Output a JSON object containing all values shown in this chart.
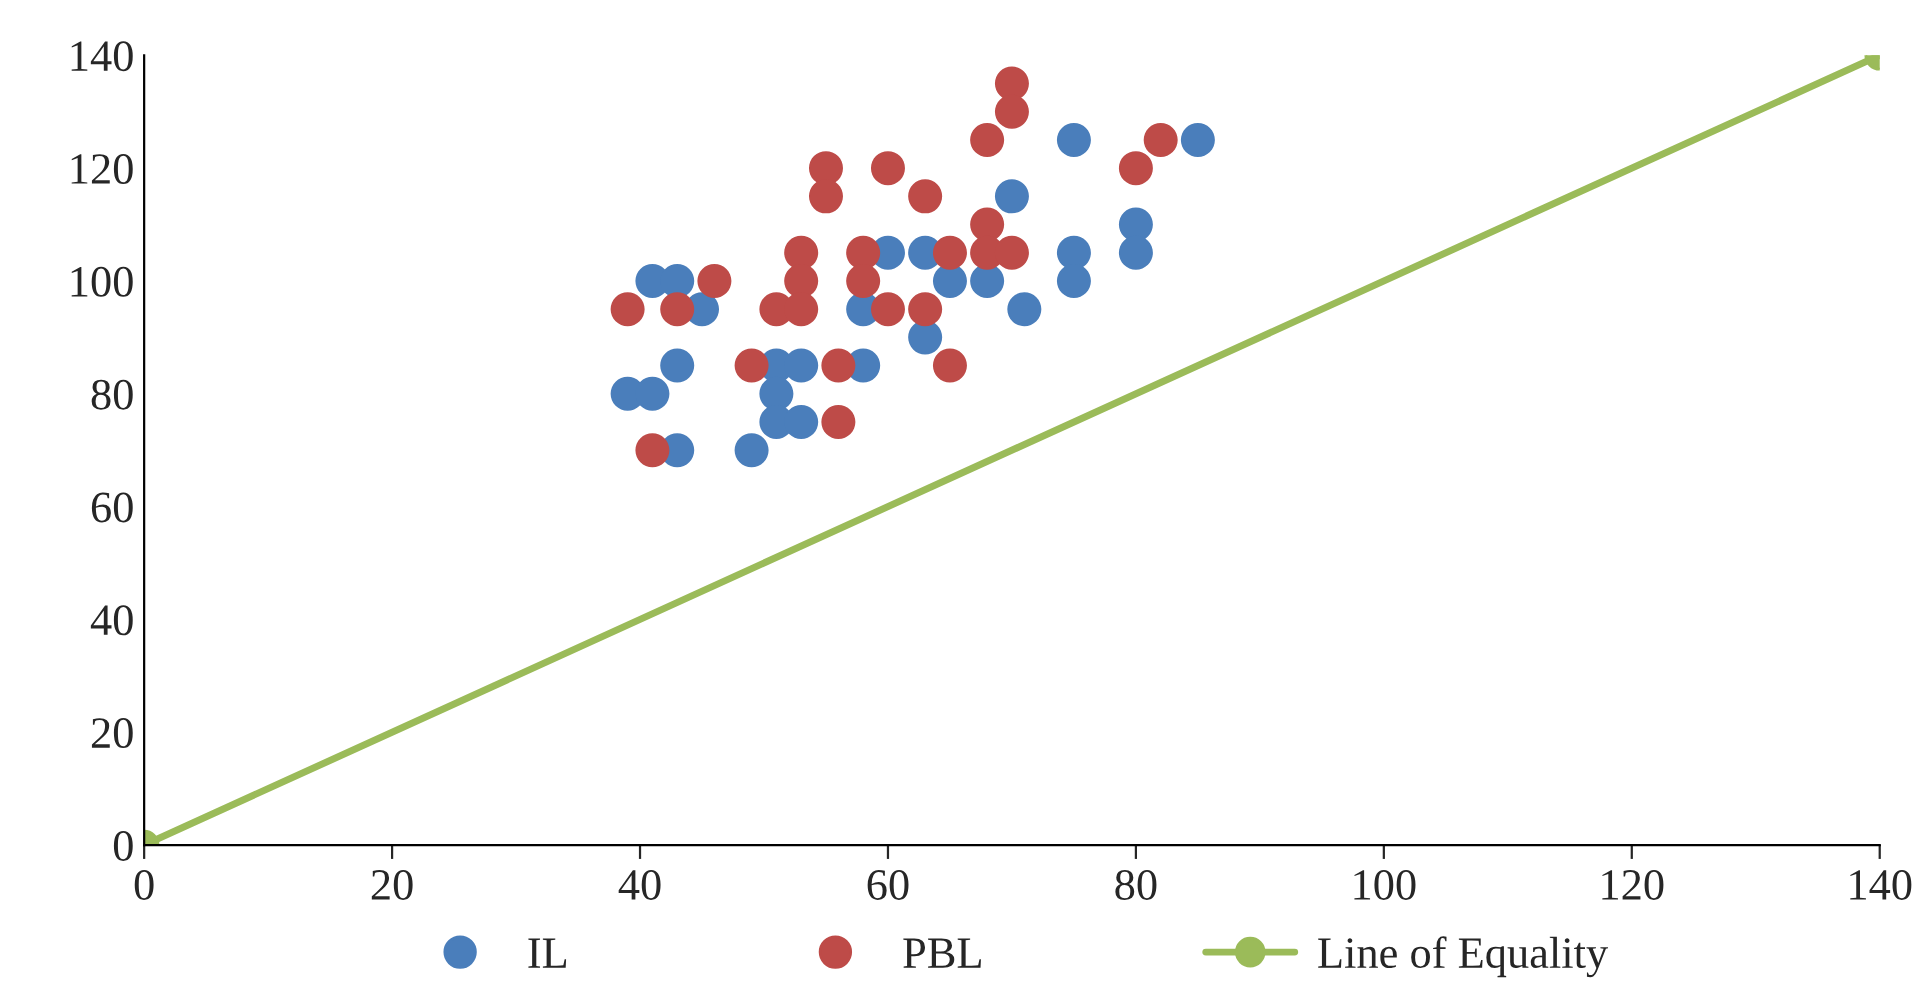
{
  "chart_data": {
    "type": "scatter",
    "xlim": [
      0,
      140
    ],
    "xticks": [
      0,
      20,
      40,
      60,
      80,
      100,
      120,
      140
    ],
    "ylim": [
      0,
      140
    ],
    "yticks": [
      0,
      20,
      40,
      60,
      80,
      100,
      120,
      140
    ],
    "grid": false,
    "legend": "bottom",
    "marker": "circle",
    "series": [
      {
        "name": "IL",
        "color": "#4a7ebb",
        "x": [
          39,
          41,
          41,
          43,
          43,
          43,
          45,
          49,
          51,
          51,
          51,
          53,
          53,
          58,
          58,
          60,
          63,
          63,
          65,
          68,
          70,
          71,
          75,
          75,
          75,
          80,
          80,
          85
        ],
        "values": [
          80,
          80,
          100,
          100,
          85,
          70,
          95,
          70,
          85,
          80,
          75,
          85,
          75,
          95,
          85,
          105,
          105,
          90,
          100,
          100,
          115,
          95,
          125,
          105,
          100,
          110,
          105,
          125
        ]
      },
      {
        "name": "PBL",
        "color": "#be4b48",
        "x": [
          39,
          41,
          43,
          46,
          49,
          51,
          53,
          53,
          53,
          55,
          55,
          56,
          56,
          58,
          58,
          60,
          60,
          63,
          63,
          65,
          65,
          68,
          68,
          68,
          70,
          70,
          70,
          80,
          82
        ],
        "values": [
          95,
          70,
          95,
          100,
          85,
          95,
          105,
          100,
          95,
          120,
          115,
          85,
          75,
          105,
          100,
          120,
          95,
          115,
          95,
          105,
          85,
          125,
          110,
          105,
          135,
          130,
          105,
          120,
          125
        ]
      },
      {
        "name": "Line of Equality",
        "type": "line",
        "color": "#9bbb59",
        "x": [
          0,
          140
        ],
        "values": [
          0,
          140
        ]
      }
    ]
  }
}
